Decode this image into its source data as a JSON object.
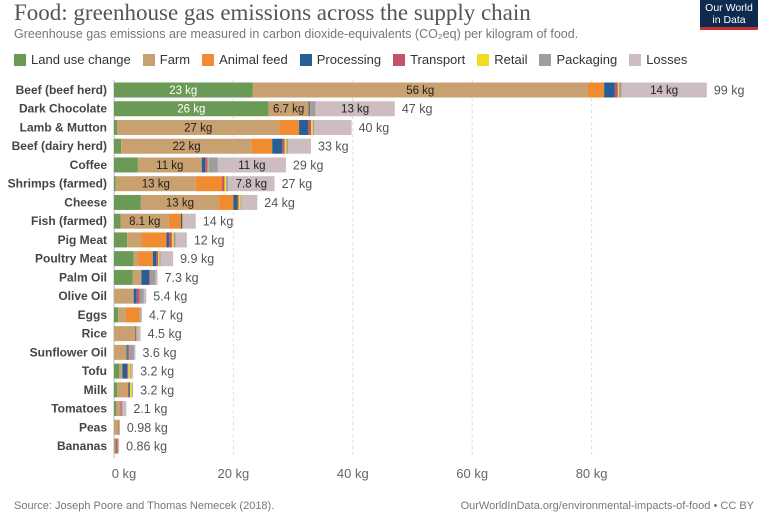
{
  "header": {
    "title": "Food: greenhouse gas emissions across the supply chain",
    "subtitle": "Greenhouse gas emissions are measured in carbon dioxide-equivalents (CO₂eq) per kilogram of food.",
    "logo_text": "Our World in Data"
  },
  "footer": {
    "source": "Source: Joseph Poore and Thomas Nemecek (2018).",
    "link": "OurWorldInData.org/environmental-impacts-of-food • CC BY"
  },
  "chart_data": {
    "type": "bar",
    "orientation": "horizontal",
    "stacked": true,
    "unit": "kg",
    "xlim": [
      0,
      100
    ],
    "xticks": [
      0,
      20,
      40,
      60,
      80
    ],
    "xtick_labels": [
      "0 kg",
      "20 kg",
      "40 kg",
      "60 kg",
      "80 kg"
    ],
    "grid": true,
    "legend_position": "top",
    "categories": [
      "Beef (beef herd)",
      "Dark Chocolate",
      "Lamb & Mutton",
      "Beef (dairy herd)",
      "Coffee",
      "Shrimps (farmed)",
      "Cheese",
      "Fish (farmed)",
      "Pig Meat",
      "Poultry Meat",
      "Palm Oil",
      "Olive Oil",
      "Eggs",
      "Rice",
      "Sunflower Oil",
      "Tofu",
      "Milk",
      "Tomatoes",
      "Peas",
      "Bananas"
    ],
    "totals": [
      99,
      47,
      40,
      33,
      29,
      27,
      24,
      14,
      12,
      9.9,
      7.3,
      5.4,
      4.7,
      4.5,
      3.6,
      3.2,
      3.2,
      2.1,
      0.98,
      0.86
    ],
    "series": [
      {
        "name": "Land use change",
        "color": "#6a9a55",
        "values": [
          23.2,
          25.9,
          0.5,
          1.2,
          4.0,
          0.3,
          4.5,
          1.1,
          2.2,
          3.3,
          3.1,
          0,
          0.7,
          0,
          0,
          0.9,
          0.5,
          0.4,
          0,
          0
        ]
      },
      {
        "name": "Farm",
        "color": "#c9a070",
        "values": [
          56.2,
          6.7,
          27.2,
          21.9,
          10.7,
          13.4,
          13.1,
          8.1,
          2.4,
          0.8,
          1.5,
          3.3,
          1.3,
          3.6,
          2.1,
          0.5,
          1.7,
          0.7,
          0.74,
          0.27
        ]
      },
      {
        "name": "Animal feed",
        "color": "#f28b30",
        "values": [
          2.7,
          0,
          3.3,
          3.4,
          0,
          4.4,
          2.4,
          2.0,
          4.2,
          2.4,
          0,
          0,
          2.2,
          0,
          0,
          0,
          0.2,
          0,
          0,
          0
        ]
      },
      {
        "name": "Processing",
        "color": "#255f94",
        "values": [
          1.8,
          0.2,
          1.5,
          1.7,
          0.6,
          0,
          0.7,
          0.2,
          0.4,
          0.6,
          1.3,
          0.5,
          0,
          0.1,
          0.2,
          0.8,
          0.2,
          0,
          0,
          0.06
        ]
      },
      {
        "name": "Transport",
        "color": "#c6536c",
        "values": [
          0.5,
          0.1,
          0.5,
          0.4,
          0.4,
          0.4,
          0.2,
          0.1,
          0.5,
          0.3,
          0.2,
          0.5,
          0.1,
          0.1,
          0.2,
          0.2,
          0.1,
          0.2,
          0.1,
          0.3
        ]
      },
      {
        "name": "Retail",
        "color": "#f1dc24",
        "values": [
          0.2,
          0.04,
          0.3,
          0.3,
          0.1,
          0.3,
          0.3,
          0.1,
          0.3,
          0.2,
          0,
          0,
          0.04,
          0.06,
          0,
          0.3,
          0.3,
          0,
          0.04,
          0.02
        ]
      },
      {
        "name": "Packaging",
        "color": "#9e9e9e",
        "values": [
          0.4,
          0.8,
          0.2,
          0.3,
          1.6,
          0.3,
          0.2,
          0.1,
          0.3,
          0.2,
          0.9,
          0.7,
          0.15,
          0.1,
          0.9,
          0.2,
          0.1,
          0.15,
          0.04,
          0.07
        ]
      },
      {
        "name": "Losses",
        "color": "#cdbdc0",
        "values": [
          14.3,
          13.3,
          6.3,
          3.8,
          11.4,
          7.8,
          2.6,
          2.0,
          1.9,
          2.1,
          0.3,
          0.4,
          0.2,
          0.5,
          0.2,
          0.3,
          0.1,
          0.62,
          0.06,
          0.14
        ]
      }
    ]
  }
}
